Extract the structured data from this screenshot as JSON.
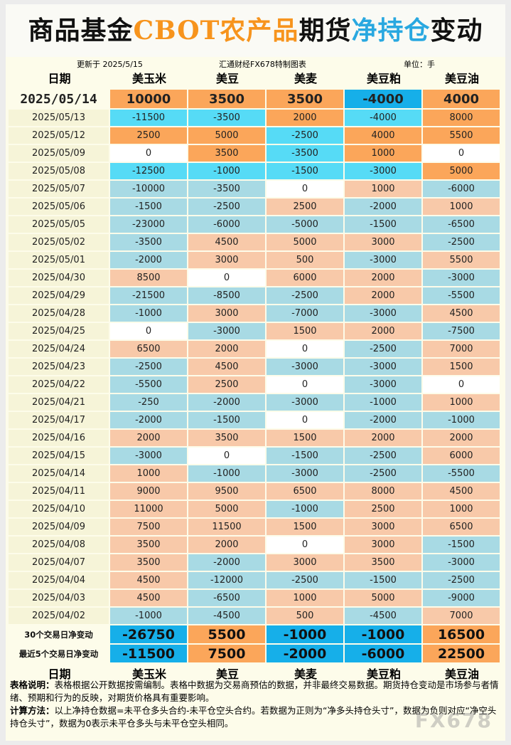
{
  "header": {
    "title_parts": [
      "商品基金",
      "CBOT农产品",
      "期货",
      "净持仓",
      "变动"
    ],
    "updated": "更新于 2025/5/15",
    "source": "汇通财经FX678特制图表",
    "unit": "单位：手"
  },
  "table": {
    "columns": [
      "日期",
      "美玉米",
      "美豆",
      "美麦",
      "美豆粕",
      "美豆油"
    ],
    "rows": [
      [
        "2025/05/14",
        10000,
        3500,
        3500,
        -4000,
        4000
      ],
      [
        "2025/05/13",
        -11500,
        -3500,
        2000,
        -4000,
        8000
      ],
      [
        "2025/05/12",
        2500,
        5000,
        -2500,
        4000,
        5500
      ],
      [
        "2025/05/09",
        0,
        3500,
        -3500,
        1000,
        0
      ],
      [
        "2025/05/08",
        -12500,
        -1000,
        -1500,
        -3000,
        5000
      ],
      [
        "2025/05/07",
        -10000,
        -3500,
        0,
        1000,
        -6000
      ],
      [
        "2025/05/06",
        -1500,
        -2500,
        2500,
        -2000,
        1000
      ],
      [
        "2025/05/05",
        -23000,
        -6000,
        -5000,
        -1500,
        -6500
      ],
      [
        "2025/05/02",
        -3500,
        4500,
        5000,
        3000,
        -2500
      ],
      [
        "2025/05/01",
        -2000,
        3000,
        500,
        -3000,
        5500
      ],
      [
        "2025/04/30",
        8500,
        0,
        6000,
        2000,
        -3000
      ],
      [
        "2025/04/29",
        -21500,
        -8500,
        -2500,
        2000,
        -5500
      ],
      [
        "2025/04/28",
        -1000,
        3000,
        -7000,
        -3000,
        4500
      ],
      [
        "2025/04/25",
        0,
        -3000,
        1500,
        2000,
        -7500
      ],
      [
        "2025/04/24",
        6500,
        2000,
        0,
        -2500,
        7000
      ],
      [
        "2025/04/23",
        -2500,
        4500,
        -3000,
        -3000,
        1500
      ],
      [
        "2025/04/22",
        -5500,
        2500,
        0,
        -3000,
        0
      ],
      [
        "2025/04/21",
        -250,
        -2000,
        -3000,
        -1000,
        1000
      ],
      [
        "2025/04/17",
        -2000,
        -1500,
        0,
        -2000,
        -1000
      ],
      [
        "2025/04/16",
        2000,
        3500,
        1500,
        2000,
        2000
      ],
      [
        "2025/04/15",
        -3000,
        0,
        -1500,
        -2500,
        6000
      ],
      [
        "2025/04/14",
        1000,
        -1000,
        -3000,
        -2500,
        -5500
      ],
      [
        "2025/04/11",
        9000,
        9500,
        6500,
        8000,
        4500
      ],
      [
        "2025/04/10",
        11000,
        5000,
        -1000,
        2500,
        1000
      ],
      [
        "2025/04/09",
        7500,
        11500,
        1500,
        3000,
        6500
      ],
      [
        "2025/04/08",
        3500,
        2000,
        0,
        3000,
        -1500
      ],
      [
        "2025/04/07",
        3500,
        -2000,
        3000,
        3500,
        -3000
      ],
      [
        "2025/04/04",
        4500,
        -12000,
        -2500,
        -1500,
        -2500
      ],
      [
        "2025/04/03",
        4500,
        -6500,
        1000,
        5000,
        -9000
      ],
      [
        "2025/04/02",
        -1000,
        -4500,
        500,
        -4500,
        7000
      ]
    ],
    "summary": [
      [
        "30个交易日净变动",
        -26750,
        5500,
        -1000,
        -1000,
        16500
      ],
      [
        "最近5个交易日净变动",
        -11500,
        7500,
        -2000,
        -6000,
        22500
      ]
    ]
  },
  "notes": [
    {
      "label": "表格说明：",
      "text": "表格根据公开数据按需编制。表格中数据为交易商预估的数据，并非最终交易数据。期货持仓变动是市场参与者情绪、预期和行为的反映，对期货价格具有重要影响。"
    },
    {
      "label": "计算方法：",
      "text": "以上净持仓数据=未平仓多头合约-未平仓空头合约。若数据为正则为“净多头持仓头寸”，数据为负则对应“净空头持仓头寸”，数据为0表示未平仓多头与未平仓空头相同。"
    }
  ],
  "watermark": "FX678"
}
